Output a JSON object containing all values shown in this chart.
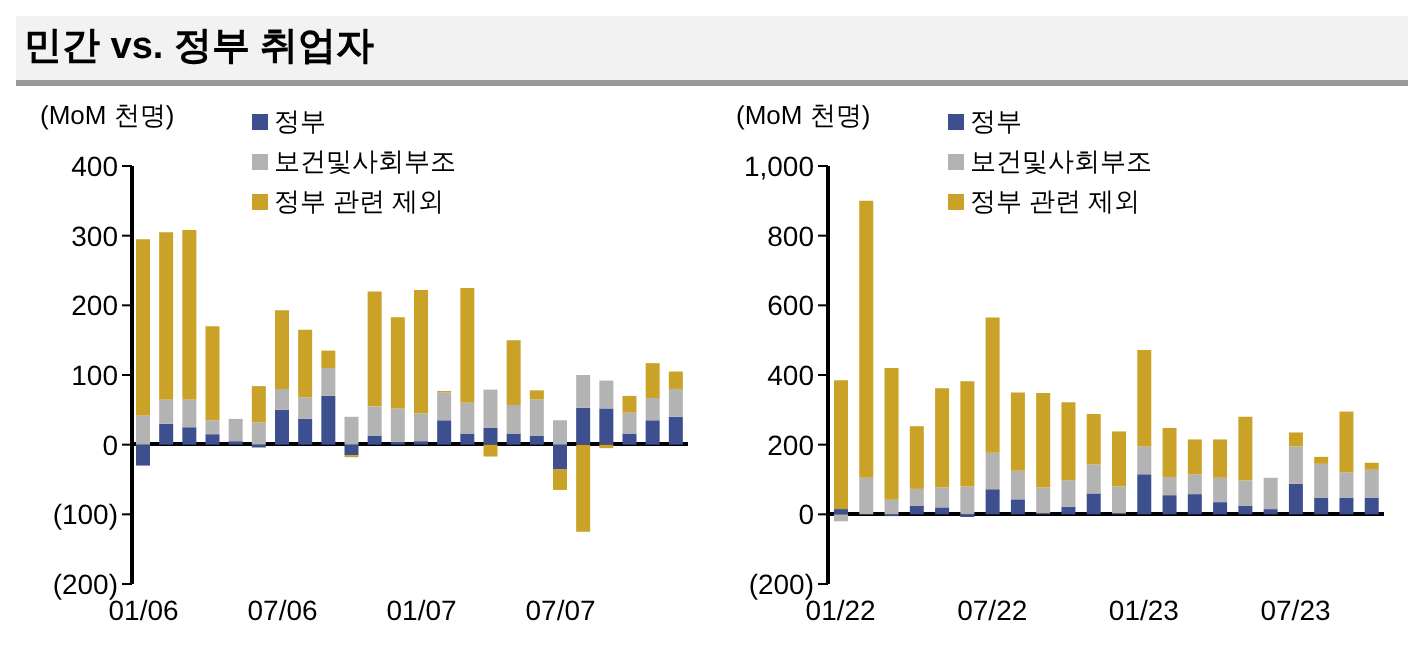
{
  "chart_data": [
    {
      "type": "bar",
      "title": "민간 vs. 정부 취업자",
      "ylabel": "(MoM 천명)",
      "stacked": true,
      "legend": "top left",
      "categories": [
        "01/06",
        null,
        null,
        null,
        null,
        null,
        "07/06",
        null,
        null,
        null,
        null,
        null,
        "01/07",
        null,
        null,
        null,
        null,
        null,
        "07/07",
        null,
        null,
        null,
        null,
        null
      ],
      "ylim": [
        -200,
        400
      ],
      "yticks": [
        {
          "value": -200,
          "label": "(200)"
        },
        {
          "value": -100,
          "label": "(100)"
        },
        0,
        100,
        200,
        300,
        400
      ],
      "series": [
        {
          "name": "정부",
          "color": "#3d4f8f",
          "values": [
            -30,
            30,
            25,
            15,
            5,
            -4,
            50,
            37,
            70,
            -15,
            13,
            4,
            5,
            35,
            16,
            24,
            16,
            13,
            -35,
            53,
            52,
            16,
            35,
            40
          ]
        },
        {
          "name": "보건및사회부조",
          "color": "#b3b3b3",
          "values": [
            42,
            35,
            40,
            20,
            32,
            32,
            30,
            31,
            40,
            40,
            42,
            48,
            40,
            40,
            44,
            55,
            41,
            52,
            35,
            47,
            40,
            30,
            32,
            40
          ]
        },
        {
          "name": "정부 관련 제외",
          "color": "#c9a227",
          "values": [
            253,
            240,
            243,
            135,
            0,
            52,
            113,
            97,
            25,
            -3,
            165,
            131,
            177,
            2,
            165,
            -17,
            93,
            13,
            -30,
            -125,
            -5,
            24,
            50,
            25
          ]
        }
      ]
    },
    {
      "type": "bar",
      "ylabel": "(MoM 천명)",
      "stacked": true,
      "legend": "top left",
      "categories": [
        "01/22",
        null,
        null,
        null,
        null,
        null,
        "07/22",
        null,
        null,
        null,
        null,
        null,
        "01/23",
        null,
        null,
        null,
        null,
        null,
        "07/23",
        null,
        null,
        null
      ],
      "ylim": [
        -200,
        1000
      ],
      "yticks": [
        {
          "value": -200,
          "label": "(200)"
        },
        0,
        200,
        400,
        600,
        800,
        {
          "value": 1000,
          "label": "1,000"
        }
      ],
      "series": [
        {
          "name": "정부",
          "color": "#3d4f8f",
          "values": [
            15,
            0,
            -5,
            25,
            20,
            -8,
            72,
            43,
            3,
            22,
            60,
            3,
            115,
            55,
            58,
            35,
            25,
            15,
            88,
            48,
            48,
            48
          ]
        },
        {
          "name": "보건및사회부조",
          "color": "#b3b3b3",
          "values": [
            -20,
            105,
            42,
            48,
            57,
            80,
            105,
            82,
            74,
            76,
            83,
            77,
            80,
            52,
            57,
            70,
            72,
            90,
            107,
            97,
            72,
            80
          ]
        },
        {
          "name": "정부 관련 제외",
          "color": "#c9a227",
          "values": [
            370,
            795,
            378,
            180,
            285,
            302,
            388,
            225,
            271,
            224,
            145,
            158,
            277,
            141,
            100,
            110,
            183,
            0,
            40,
            20,
            175,
            20
          ]
        }
      ]
    }
  ]
}
